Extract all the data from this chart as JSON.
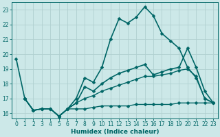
{
  "title": "",
  "xlabel": "Humidex (Indice chaleur)",
  "ylabel": "",
  "xlim": [
    -0.5,
    23.5
  ],
  "ylim": [
    15.65,
    23.5
  ],
  "bg_color": "#cce8e8",
  "grid_color": "#b0d0d0",
  "line_color": "#006666",
  "xticks": [
    0,
    1,
    2,
    3,
    4,
    5,
    6,
    7,
    8,
    9,
    10,
    11,
    12,
    13,
    14,
    15,
    16,
    17,
    18,
    19,
    20,
    21,
    22,
    23
  ],
  "yticks": [
    16,
    17,
    18,
    19,
    20,
    21,
    22,
    23
  ],
  "series": [
    {
      "x": [
        0,
        1,
        2,
        3,
        4,
        5,
        6,
        7,
        8,
        9,
        10,
        11,
        12,
        13,
        14,
        15,
        16,
        17,
        18,
        19,
        20,
        21,
        22,
        23
      ],
      "y": [
        19.7,
        17.0,
        16.2,
        16.3,
        16.3,
        15.8,
        16.3,
        17.0,
        18.4,
        18.1,
        19.1,
        21.0,
        22.4,
        22.1,
        22.5,
        23.2,
        22.6,
        21.4,
        20.9,
        20.4,
        19.1,
        18.4,
        17.0,
        16.7
      ],
      "marker": "D",
      "markersize": 2.5,
      "linewidth": 1.2
    },
    {
      "x": [
        1,
        2,
        3,
        4,
        5,
        6,
        7,
        8,
        9,
        10,
        11,
        12,
        13,
        14,
        15,
        16,
        17,
        18,
        19,
        20,
        21,
        22,
        23
      ],
      "y": [
        17.0,
        16.2,
        16.3,
        16.3,
        15.8,
        16.3,
        16.7,
        17.8,
        17.5,
        18.0,
        18.4,
        18.7,
        18.9,
        19.1,
        19.3,
        18.6,
        18.8,
        19.0,
        19.1,
        20.4,
        19.1,
        17.5,
        16.7
      ],
      "marker": "D",
      "markersize": 2.5,
      "linewidth": 1.2
    },
    {
      "x": [
        1,
        2,
        3,
        4,
        5,
        6,
        7,
        8,
        9,
        10,
        11,
        12,
        13,
        14,
        15,
        16,
        17,
        18,
        19,
        20,
        21,
        22,
        23
      ],
      "y": [
        17.0,
        16.2,
        16.3,
        16.3,
        15.8,
        16.3,
        16.7,
        17.0,
        17.2,
        17.5,
        17.7,
        17.9,
        18.1,
        18.3,
        18.5,
        18.5,
        18.6,
        18.7,
        18.9,
        19.0,
        18.5,
        17.0,
        16.7
      ],
      "marker": "D",
      "markersize": 2.5,
      "linewidth": 1.0
    },
    {
      "x": [
        1,
        2,
        3,
        4,
        5,
        6,
        7,
        8,
        9,
        10,
        11,
        12,
        13,
        14,
        15,
        16,
        17,
        18,
        19,
        20,
        21,
        22,
        23
      ],
      "y": [
        17.0,
        16.2,
        16.3,
        16.3,
        15.8,
        16.3,
        16.3,
        16.3,
        16.4,
        16.5,
        16.5,
        16.5,
        16.5,
        16.6,
        16.6,
        16.6,
        16.6,
        16.6,
        16.7,
        16.7,
        16.7,
        16.7,
        16.7
      ],
      "marker": "D",
      "markersize": 2.5,
      "linewidth": 1.0
    }
  ]
}
